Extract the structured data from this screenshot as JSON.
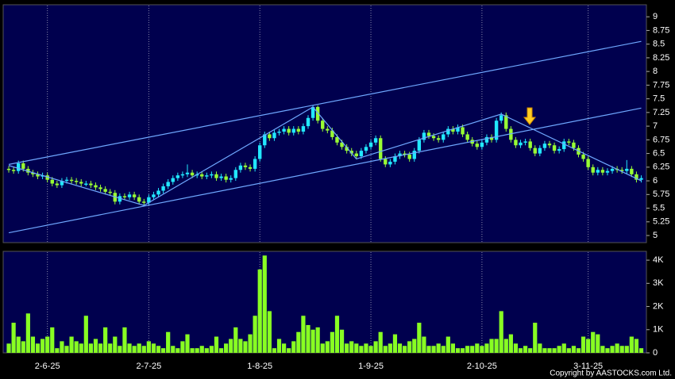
{
  "chart_data": [
    {
      "type": "candlestick",
      "categories": [
        null,
        null,
        null,
        null,
        null,
        null,
        null,
        null,
        "2-6-25",
        null,
        null,
        null,
        null,
        null,
        null,
        null,
        null,
        null,
        null,
        null,
        null,
        null,
        null,
        null,
        null,
        null,
        null,
        null,
        null,
        "2-7-25",
        null,
        null,
        null,
        null,
        null,
        null,
        null,
        null,
        null,
        null,
        null,
        null,
        null,
        null,
        null,
        null,
        null,
        null,
        null,
        null,
        null,
        null,
        "1-8-25",
        null,
        null,
        null,
        null,
        null,
        null,
        null,
        null,
        null,
        null,
        null,
        null,
        null,
        null,
        null,
        null,
        null,
        null,
        null,
        null,
        null,
        null,
        "1-9-25",
        null,
        null,
        null,
        null,
        null,
        null,
        null,
        null,
        null,
        null,
        null,
        null,
        null,
        null,
        null,
        null,
        null,
        null,
        null,
        null,
        null,
        null,
        "2-10-25",
        null,
        null,
        null,
        null,
        null,
        null,
        null,
        null,
        null,
        null,
        null,
        null,
        null,
        null,
        null,
        null,
        null,
        null,
        null,
        null,
        null,
        "3-11-25",
        null,
        null,
        null,
        null,
        null,
        null,
        null,
        null,
        null,
        null,
        null
      ],
      "open": [
        6.22,
        6.2,
        6.18,
        6.32,
        6.22,
        6.15,
        6.12,
        6.08,
        6.1,
        6.02,
        5.95,
        5.92,
        6.0,
        6.02,
        6.0,
        5.98,
        5.95,
        5.95,
        5.92,
        5.88,
        5.85,
        5.8,
        5.78,
        5.62,
        5.72,
        5.7,
        5.75,
        5.7,
        5.62,
        5.6,
        5.7,
        5.75,
        5.82,
        5.9,
        5.98,
        6.05,
        6.1,
        6.12,
        6.15,
        6.1,
        6.12,
        6.08,
        6.1,
        6.12,
        6.05,
        6.08,
        6.02,
        6.05,
        6.2,
        6.28,
        6.25,
        6.22,
        6.4,
        6.65,
        6.85,
        6.78,
        6.88,
        6.9,
        6.95,
        6.88,
        6.95,
        6.9,
        7.0,
        7.15,
        7.35,
        7.1,
        6.95,
        6.92,
        6.8,
        6.7,
        6.62,
        6.55,
        6.5,
        6.45,
        6.55,
        6.62,
        6.7,
        6.78,
        6.4,
        6.3,
        6.35,
        6.45,
        6.5,
        6.48,
        6.4,
        6.55,
        6.75,
        6.88,
        6.82,
        6.78,
        6.75,
        6.85,
        6.95,
        6.9,
        6.98,
        6.85,
        6.75,
        6.68,
        6.62,
        6.7,
        6.8,
        6.75,
        7.1,
        7.2,
        6.95,
        6.75,
        6.65,
        6.7,
        6.72,
        6.6,
        6.5,
        6.6,
        6.68,
        6.65,
        6.55,
        6.58,
        6.72,
        6.7,
        6.6,
        6.48,
        6.4,
        6.25,
        6.15,
        6.2,
        6.15,
        6.18,
        6.22,
        6.2,
        6.18,
        6.22,
        6.12,
        6.02
      ],
      "high": [
        6.27,
        6.25,
        6.37,
        6.37,
        6.27,
        6.2,
        6.17,
        6.15,
        6.15,
        6.07,
        6.0,
        6.05,
        6.07,
        6.07,
        6.05,
        6.03,
        6.0,
        6.0,
        5.97,
        5.93,
        5.9,
        5.85,
        5.83,
        5.77,
        5.77,
        5.8,
        5.8,
        5.75,
        5.67,
        5.75,
        5.8,
        5.87,
        5.95,
        6.03,
        6.1,
        6.15,
        6.17,
        6.3,
        6.2,
        6.17,
        6.17,
        6.15,
        6.17,
        6.17,
        6.13,
        6.13,
        6.1,
        6.25,
        6.33,
        6.33,
        6.3,
        6.45,
        6.7,
        6.9,
        6.9,
        6.93,
        6.95,
        7.0,
        7.0,
        7.0,
        7.0,
        7.05,
        7.2,
        7.38,
        7.38,
        7.15,
        7.0,
        6.97,
        6.85,
        6.75,
        6.67,
        6.6,
        6.55,
        6.6,
        6.67,
        6.75,
        6.83,
        6.83,
        6.45,
        6.4,
        6.5,
        6.55,
        6.55,
        6.53,
        6.6,
        6.8,
        6.93,
        6.93,
        6.87,
        6.83,
        6.9,
        7.0,
        7.0,
        7.03,
        7.03,
        6.9,
        6.8,
        6.73,
        6.75,
        6.85,
        6.85,
        7.15,
        7.25,
        7.25,
        7.0,
        6.8,
        6.75,
        6.77,
        6.77,
        6.65,
        6.65,
        6.73,
        6.73,
        6.7,
        6.63,
        6.77,
        6.77,
        6.75,
        6.65,
        6.53,
        6.45,
        6.3,
        6.25,
        6.25,
        6.23,
        6.27,
        6.27,
        6.25,
        6.38,
        6.27,
        6.17,
        6.1
      ],
      "low": [
        6.15,
        6.13,
        6.13,
        6.17,
        6.1,
        6.07,
        6.03,
        6.03,
        5.97,
        5.9,
        5.87,
        5.87,
        5.95,
        5.95,
        5.93,
        5.9,
        5.9,
        5.87,
        5.83,
        5.8,
        5.75,
        5.73,
        5.57,
        5.57,
        5.65,
        5.65,
        5.65,
        5.57,
        5.55,
        5.55,
        5.65,
        5.7,
        5.77,
        5.85,
        5.93,
        6.0,
        6.05,
        6.07,
        6.05,
        6.05,
        6.03,
        6.03,
        6.05,
        6.0,
        6.0,
        5.97,
        5.97,
        6.0,
        6.15,
        6.2,
        6.17,
        6.17,
        6.35,
        6.6,
        6.73,
        6.73,
        6.83,
        6.85,
        6.83,
        6.83,
        6.85,
        6.85,
        6.95,
        7.1,
        7.05,
        6.9,
        6.87,
        6.75,
        6.65,
        6.57,
        6.5,
        6.45,
        6.4,
        6.4,
        6.5,
        6.57,
        6.65,
        6.35,
        6.25,
        6.25,
        6.3,
        6.4,
        6.43,
        6.35,
        6.35,
        6.5,
        6.7,
        6.77,
        6.73,
        6.7,
        6.7,
        6.8,
        6.85,
        6.85,
        6.8,
        6.7,
        6.63,
        6.57,
        6.57,
        6.65,
        6.7,
        6.7,
        7.05,
        6.9,
        6.7,
        6.6,
        6.6,
        6.65,
        6.55,
        6.45,
        6.45,
        6.55,
        6.6,
        6.5,
        6.5,
        6.53,
        6.65,
        6.55,
        6.43,
        6.35,
        6.2,
        6.1,
        6.1,
        6.1,
        6.1,
        6.13,
        6.15,
        6.13,
        6.13,
        6.07,
        5.97,
        5.97
      ],
      "close": [
        6.2,
        6.18,
        6.32,
        6.22,
        6.15,
        6.12,
        6.08,
        6.1,
        6.02,
        5.95,
        5.92,
        6.0,
        6.02,
        6.0,
        5.98,
        5.95,
        5.95,
        5.92,
        5.88,
        5.85,
        5.8,
        5.78,
        5.62,
        5.72,
        5.7,
        5.75,
        5.7,
        5.62,
        5.6,
        5.7,
        5.75,
        5.82,
        5.9,
        5.98,
        6.05,
        6.1,
        6.12,
        6.15,
        6.1,
        6.12,
        6.08,
        6.1,
        6.12,
        6.05,
        6.08,
        6.02,
        6.05,
        6.2,
        6.28,
        6.25,
        6.22,
        6.4,
        6.65,
        6.85,
        6.78,
        6.88,
        6.9,
        6.95,
        6.88,
        6.95,
        6.9,
        7.0,
        7.15,
        7.35,
        7.1,
        6.95,
        6.92,
        6.8,
        6.7,
        6.62,
        6.55,
        6.5,
        6.45,
        6.55,
        6.62,
        6.7,
        6.78,
        6.4,
        6.3,
        6.35,
        6.45,
        6.5,
        6.48,
        6.4,
        6.55,
        6.75,
        6.88,
        6.82,
        6.78,
        6.75,
        6.85,
        6.95,
        6.9,
        6.98,
        6.85,
        6.75,
        6.68,
        6.62,
        6.7,
        6.8,
        6.75,
        7.1,
        7.2,
        6.95,
        6.75,
        6.65,
        6.7,
        6.72,
        6.6,
        6.5,
        6.6,
        6.68,
        6.65,
        6.55,
        6.58,
        6.72,
        6.7,
        6.6,
        6.48,
        6.4,
        6.25,
        6.15,
        6.2,
        6.15,
        6.18,
        6.22,
        6.2,
        6.18,
        6.22,
        6.12,
        6.02,
        6.05
      ],
      "up_color": "#22e8ff",
      "down_color": "#99ff33",
      "ylim": [
        4.87,
        9.22
      ],
      "yticks": [
        5,
        5.25,
        5.5,
        5.75,
        6,
        6.25,
        6.5,
        6.75,
        7,
        7.25,
        7.5,
        7.75,
        8,
        8.25,
        8.5,
        8.75,
        9
      ],
      "trend_lines": [
        {
          "x": [
            0,
            131
          ],
          "y": [
            6.3,
            8.55
          ]
        },
        {
          "x": [
            0,
            131
          ],
          "y": [
            5.05,
            7.33
          ]
        },
        {
          "x": [
            0,
            28,
            63,
            72,
            102,
            131
          ],
          "y": [
            6.28,
            5.55,
            7.35,
            6.4,
            7.22,
            6.0
          ]
        }
      ],
      "line_color": "#6fa8ff",
      "grid": true
    },
    {
      "type": "bar",
      "values": [
        400,
        1300,
        700,
        500,
        1700,
        700,
        400,
        600,
        700,
        1100,
        200,
        500,
        300,
        700,
        500,
        400,
        1600,
        400,
        600,
        400,
        1100,
        400,
        700,
        300,
        1100,
        400,
        300,
        400,
        300,
        500,
        400,
        300,
        200,
        900,
        300,
        200,
        500,
        800,
        200,
        200,
        300,
        200,
        300,
        700,
        200,
        400,
        600,
        1100,
        600,
        500,
        800,
        1600,
        3600,
        4200,
        1800,
        200,
        600,
        400,
        200,
        500,
        900,
        1600,
        1200,
        1000,
        1100,
        400,
        500,
        900,
        1600,
        1000,
        400,
        500,
        400,
        300,
        400,
        300,
        500,
        900,
        300,
        400,
        800,
        400,
        300,
        500,
        600,
        1300,
        700,
        300,
        300,
        400,
        300,
        700,
        400,
        200,
        200,
        300,
        300,
        400,
        300,
        400,
        600,
        600,
        1800,
        600,
        800,
        400,
        200,
        300,
        200,
        1300,
        400,
        200,
        200,
        200,
        300,
        400,
        200,
        300,
        200,
        700,
        600,
        900,
        800,
        300,
        200,
        300,
        400,
        300,
        300,
        700,
        600,
        200
      ],
      "color": "#88ff22",
      "ylim": [
        0,
        4380
      ],
      "yticks": [
        0,
        {
          "value": 1000,
          "label": "1K"
        },
        {
          "value": 2000,
          "label": "2K"
        },
        {
          "value": 3000,
          "label": "3K"
        },
        {
          "value": 4000,
          "label": "4K"
        }
      ]
    }
  ],
  "copyright": "Copyright by AASTOCKS.com Ltd."
}
